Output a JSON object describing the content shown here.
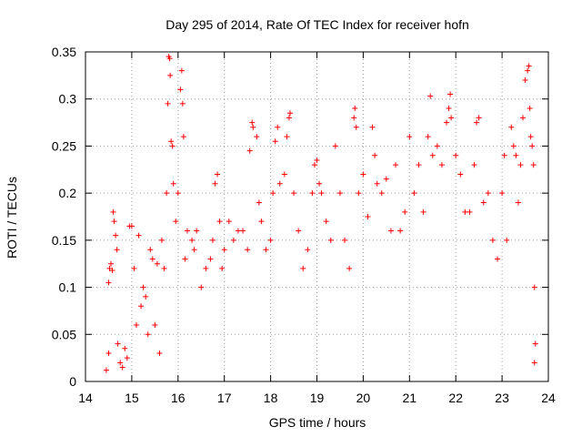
{
  "chart_data": {
    "type": "scatter",
    "title": "Day 295 of 2014, Rate Of TEC Index for receiver hofn",
    "xlabel": "GPS time / hours",
    "ylabel": "ROTI / TECUs",
    "xlim": [
      14,
      24
    ],
    "ylim": [
      0,
      0.35
    ],
    "xticks": [
      "14",
      "15",
      "16",
      "17",
      "18",
      "19",
      "20",
      "21",
      "22",
      "23",
      "24"
    ],
    "yticks": [
      "0",
      "0.05",
      "0.1",
      "0.15",
      "0.2",
      "0.25",
      "0.3",
      "0.35"
    ],
    "grid": true,
    "marker": "+",
    "color": "#ff0000",
    "series": [
      {
        "name": "ROTI",
        "points": [
          [
            14.45,
            0.012
          ],
          [
            14.5,
            0.03
          ],
          [
            14.5,
            0.105
          ],
          [
            14.52,
            0.12
          ],
          [
            14.55,
            0.125
          ],
          [
            14.58,
            0.118
          ],
          [
            14.6,
            0.18
          ],
          [
            14.62,
            0.17
          ],
          [
            14.65,
            0.155
          ],
          [
            14.68,
            0.14
          ],
          [
            14.7,
            0.04
          ],
          [
            14.75,
            0.02
          ],
          [
            14.8,
            0.015
          ],
          [
            14.85,
            0.035
          ],
          [
            14.9,
            0.025
          ],
          [
            14.95,
            0.165
          ],
          [
            15.0,
            0.165
          ],
          [
            15.05,
            0.12
          ],
          [
            15.1,
            0.06
          ],
          [
            15.15,
            0.155
          ],
          [
            15.2,
            0.08
          ],
          [
            15.25,
            0.1
          ],
          [
            15.3,
            0.09
          ],
          [
            15.35,
            0.05
          ],
          [
            15.4,
            0.14
          ],
          [
            15.45,
            0.13
          ],
          [
            15.5,
            0.06
          ],
          [
            15.55,
            0.125
          ],
          [
            15.6,
            0.03
          ],
          [
            15.65,
            0.15
          ],
          [
            15.7,
            0.12
          ],
          [
            15.75,
            0.2
          ],
          [
            15.78,
            0.295
          ],
          [
            15.8,
            0.345
          ],
          [
            15.82,
            0.343
          ],
          [
            15.83,
            0.325
          ],
          [
            15.85,
            0.255
          ],
          [
            15.88,
            0.25
          ],
          [
            15.9,
            0.21
          ],
          [
            15.95,
            0.17
          ],
          [
            16.0,
            0.2
          ],
          [
            16.05,
            0.31
          ],
          [
            16.08,
            0.33
          ],
          [
            16.1,
            0.295
          ],
          [
            16.12,
            0.26
          ],
          [
            16.15,
            0.13
          ],
          [
            16.2,
            0.16
          ],
          [
            16.3,
            0.15
          ],
          [
            16.35,
            0.14
          ],
          [
            16.4,
            0.16
          ],
          [
            16.5,
            0.1
          ],
          [
            16.6,
            0.12
          ],
          [
            16.7,
            0.13
          ],
          [
            16.75,
            0.15
          ],
          [
            16.8,
            0.21
          ],
          [
            16.85,
            0.22
          ],
          [
            16.9,
            0.17
          ],
          [
            16.95,
            0.12
          ],
          [
            17.0,
            0.14
          ],
          [
            17.1,
            0.17
          ],
          [
            17.2,
            0.15
          ],
          [
            17.3,
            0.16
          ],
          [
            17.4,
            0.16
          ],
          [
            17.5,
            0.14
          ],
          [
            17.55,
            0.245
          ],
          [
            17.6,
            0.275
          ],
          [
            17.62,
            0.27
          ],
          [
            17.7,
            0.26
          ],
          [
            17.75,
            0.19
          ],
          [
            17.8,
            0.17
          ],
          [
            17.9,
            0.14
          ],
          [
            18.0,
            0.15
          ],
          [
            18.05,
            0.2
          ],
          [
            18.1,
            0.255
          ],
          [
            18.15,
            0.27
          ],
          [
            18.2,
            0.21
          ],
          [
            18.3,
            0.22
          ],
          [
            18.35,
            0.26
          ],
          [
            18.4,
            0.28
          ],
          [
            18.42,
            0.285
          ],
          [
            18.5,
            0.2
          ],
          [
            18.6,
            0.16
          ],
          [
            18.7,
            0.12
          ],
          [
            18.8,
            0.14
          ],
          [
            18.9,
            0.2
          ],
          [
            18.95,
            0.23
          ],
          [
            19.0,
            0.235
          ],
          [
            19.05,
            0.21
          ],
          [
            19.1,
            0.2
          ],
          [
            19.2,
            0.17
          ],
          [
            19.3,
            0.15
          ],
          [
            19.4,
            0.25
          ],
          [
            19.5,
            0.2
          ],
          [
            19.6,
            0.15
          ],
          [
            19.7,
            0.12
          ],
          [
            19.8,
            0.28
          ],
          [
            19.82,
            0.29
          ],
          [
            19.85,
            0.27
          ],
          [
            19.9,
            0.2
          ],
          [
            20.0,
            0.22
          ],
          [
            20.1,
            0.175
          ],
          [
            20.2,
            0.27
          ],
          [
            20.25,
            0.24
          ],
          [
            20.3,
            0.21
          ],
          [
            20.4,
            0.2
          ],
          [
            20.5,
            0.215
          ],
          [
            20.6,
            0.16
          ],
          [
            20.7,
            0.23
          ],
          [
            20.8,
            0.16
          ],
          [
            20.9,
            0.18
          ],
          [
            21.0,
            0.26
          ],
          [
            21.1,
            0.2
          ],
          [
            21.2,
            0.23
          ],
          [
            21.3,
            0.18
          ],
          [
            21.4,
            0.26
          ],
          [
            21.45,
            0.303
          ],
          [
            21.5,
            0.24
          ],
          [
            21.6,
            0.25
          ],
          [
            21.7,
            0.23
          ],
          [
            21.8,
            0.275
          ],
          [
            21.85,
            0.29
          ],
          [
            21.88,
            0.305
          ],
          [
            21.9,
            0.28
          ],
          [
            22.0,
            0.24
          ],
          [
            22.1,
            0.22
          ],
          [
            22.2,
            0.18
          ],
          [
            22.3,
            0.18
          ],
          [
            22.4,
            0.23
          ],
          [
            22.45,
            0.275
          ],
          [
            22.5,
            0.28
          ],
          [
            22.6,
            0.19
          ],
          [
            22.7,
            0.2
          ],
          [
            22.8,
            0.15
          ],
          [
            22.9,
            0.13
          ],
          [
            23.0,
            0.2
          ],
          [
            23.05,
            0.24
          ],
          [
            23.1,
            0.15
          ],
          [
            23.2,
            0.27
          ],
          [
            23.25,
            0.25
          ],
          [
            23.3,
            0.24
          ],
          [
            23.35,
            0.19
          ],
          [
            23.4,
            0.23
          ],
          [
            23.45,
            0.28
          ],
          [
            23.5,
            0.32
          ],
          [
            23.55,
            0.33
          ],
          [
            23.58,
            0.335
          ],
          [
            23.6,
            0.29
          ],
          [
            23.62,
            0.26
          ],
          [
            23.65,
            0.25
          ],
          [
            23.68,
            0.23
          ],
          [
            23.7,
            0.1
          ],
          [
            23.72,
            0.04
          ],
          [
            23.7,
            0.02
          ]
        ]
      }
    ]
  }
}
